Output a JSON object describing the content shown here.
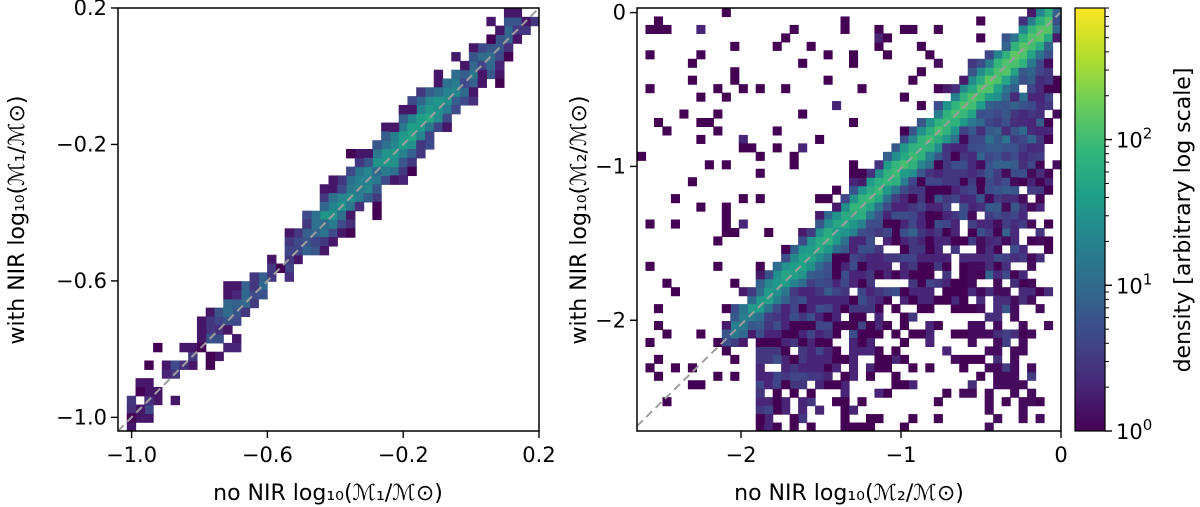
{
  "chart_data": [
    {
      "type": "heatmap",
      "panel": "left",
      "xlabel": "no NIR log₁₀(ℳ₁/ℳ⊙)",
      "ylabel": "with NIR log₁₀(ℳ₁/ℳ⊙)",
      "xlim": [
        -1.04,
        0.2
      ],
      "ylim": [
        -1.04,
        0.2
      ],
      "xticks": [
        -1.0,
        -0.6,
        -0.2,
        0.2
      ],
      "yticks": [
        -1.0,
        -0.6,
        -0.2,
        0.2
      ],
      "xtick_labels": [
        "−1.0",
        "−0.6",
        "−0.2",
        "0.2"
      ],
      "ytick_labels": [
        "−1.0",
        "−0.6",
        "−0.2",
        "0.2"
      ],
      "reference_line": "y = x (dashed)",
      "note": "2D histogram of stellar mass estimates; density concentrated tightly along y = x"
    },
    {
      "type": "heatmap",
      "panel": "right",
      "xlabel": "no NIR log₁₀(ℳ₂/ℳ⊙)",
      "ylabel": "with NIR log₁₀(ℳ₂/ℳ⊙)",
      "xlim": [
        -2.65,
        0.0
      ],
      "ylim": [
        -2.72,
        0.03
      ],
      "xticks": [
        -2,
        -1,
        0
      ],
      "yticks": [
        -2,
        -1,
        0
      ],
      "xtick_labels": [
        "−2",
        "−1",
        "0"
      ],
      "ytick_labels": [
        "−2",
        "−1",
        "0"
      ],
      "reference_line": "y = x (dashed)",
      "note": "2D histogram; dense core along y = x with broad scatter below the line"
    }
  ],
  "colorbar": {
    "label": "density [arbitrary log scale]",
    "scale": "log",
    "range": [
      1,
      800
    ],
    "ticks": [
      {
        "value": 1,
        "base": "10",
        "exp": "0"
      },
      {
        "value": 10,
        "base": "10",
        "exp": "1"
      },
      {
        "value": 100,
        "base": "10",
        "exp": "2"
      }
    ],
    "colormap": "viridis"
  },
  "colors": {
    "viridis": [
      "#440154",
      "#482878",
      "#3e4989",
      "#31688e",
      "#26828e",
      "#1f9e89",
      "#35b779",
      "#6ece58",
      "#b5de2b",
      "#fde725"
    ],
    "reference_line": "#9e9e9e",
    "axes": "#000000"
  }
}
